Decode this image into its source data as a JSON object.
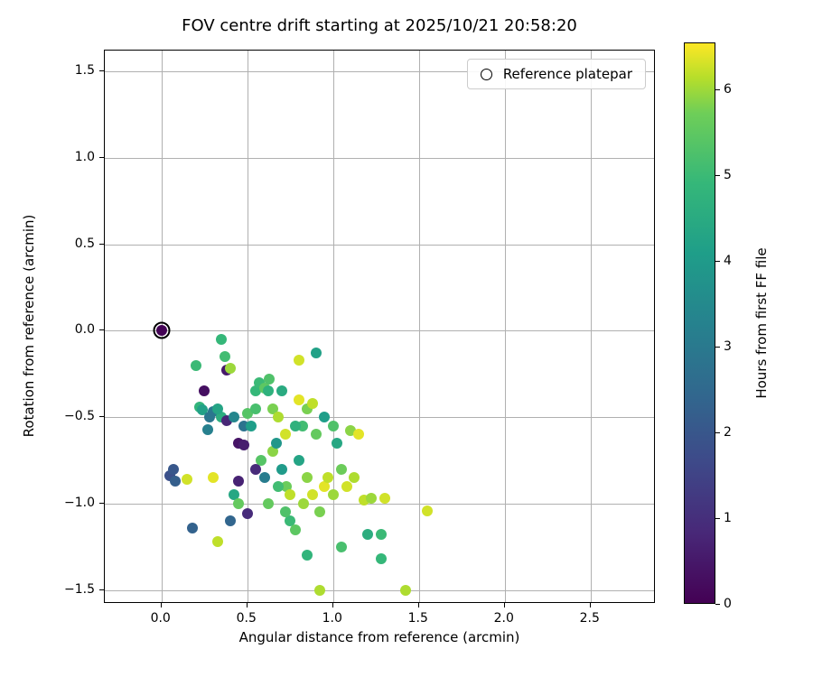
{
  "figure": {
    "title": "FOV centre drift starting at 2025/10/21 20:58:20",
    "xlabel": "Angular distance from reference (arcmin)",
    "ylabel": "Rotation from reference (arcmin)",
    "legend": {
      "label": "Reference platepar",
      "marker": "open-circle"
    },
    "colorbar": {
      "label": "Hours from first FF file"
    }
  },
  "chart_data": {
    "type": "scatter",
    "title": "FOV centre drift starting at 2025/10/21 20:58:20",
    "xlabel": "Angular distance from reference (arcmin)",
    "ylabel": "Rotation from reference (arcmin)",
    "xlim": [
      -0.33,
      2.88
    ],
    "ylim": [
      -1.58,
      1.62
    ],
    "xticks": [
      0.0,
      0.5,
      1.0,
      1.5,
      2.0,
      2.5
    ],
    "yticks": [
      -1.5,
      -1.0,
      -0.5,
      0.0,
      0.5,
      1.0,
      1.5
    ],
    "grid": true,
    "colormap": "viridis",
    "color_label": "Hours from first FF file",
    "color_range": [
      0,
      6.55
    ],
    "colorbar_ticks": [
      0,
      1,
      2,
      3,
      4,
      5,
      6
    ],
    "legend_position": "upper right",
    "reference_point": {
      "x": 0.0,
      "y": 0.0,
      "label": "Reference platepar"
    },
    "points_format": [
      "angular_distance_arcmin",
      "rotation_arcmin",
      "hours_from_first_ff"
    ],
    "points": [
      [
        0.0,
        0.0,
        0.05
      ],
      [
        0.05,
        -0.84,
        1.8
      ],
      [
        0.08,
        -0.87,
        2.2
      ],
      [
        0.07,
        -0.8,
        2.0
      ],
      [
        0.18,
        -1.14,
        2.3
      ],
      [
        0.15,
        -0.86,
        6.3
      ],
      [
        0.2,
        -0.2,
        5.0
      ],
      [
        0.22,
        -0.44,
        4.8
      ],
      [
        0.25,
        -0.35,
        0.3
      ],
      [
        0.27,
        -0.57,
        3.2
      ],
      [
        0.24,
        -0.46,
        4.2
      ],
      [
        0.3,
        -0.47,
        3.0
      ],
      [
        0.28,
        -0.5,
        2.9
      ],
      [
        0.3,
        -0.85,
        6.4
      ],
      [
        0.33,
        -1.22,
        6.2
      ],
      [
        0.35,
        -0.05,
        4.9
      ],
      [
        0.37,
        -0.15,
        5.1
      ],
      [
        0.38,
        -0.23,
        0.5
      ],
      [
        0.4,
        -0.22,
        6.0
      ],
      [
        0.35,
        -0.5,
        4.6
      ],
      [
        0.33,
        -0.45,
        4.3
      ],
      [
        0.38,
        -0.52,
        0.8
      ],
      [
        0.42,
        -0.5,
        3.4
      ],
      [
        0.45,
        -0.65,
        0.4
      ],
      [
        0.48,
        -0.66,
        0.6
      ],
      [
        0.45,
        -0.87,
        0.7
      ],
      [
        0.42,
        -0.95,
        4.4
      ],
      [
        0.45,
        -1.0,
        5.6
      ],
      [
        0.4,
        -1.1,
        2.4
      ],
      [
        0.5,
        -1.06,
        0.9
      ],
      [
        0.48,
        -0.55,
        2.8
      ],
      [
        0.52,
        -0.55,
        4.1
      ],
      [
        0.5,
        -0.48,
        5.4
      ],
      [
        0.55,
        -0.45,
        5.2
      ],
      [
        0.55,
        -0.35,
        4.9
      ],
      [
        0.57,
        -0.3,
        5.0
      ],
      [
        0.6,
        -0.33,
        5.5
      ],
      [
        0.62,
        -0.35,
        4.7
      ],
      [
        0.63,
        -0.28,
        5.3
      ],
      [
        0.65,
        -0.45,
        5.8
      ],
      [
        0.65,
        -0.7,
        5.9
      ],
      [
        0.67,
        -0.65,
        3.9
      ],
      [
        0.68,
        -0.5,
        6.1
      ],
      [
        0.7,
        -0.35,
        4.5
      ],
      [
        0.7,
        -0.8,
        4.0
      ],
      [
        0.72,
        -0.6,
        6.3
      ],
      [
        0.73,
        -0.9,
        5.7
      ],
      [
        0.75,
        -0.95,
        6.2
      ],
      [
        0.75,
        -1.1,
        5.0
      ],
      [
        0.78,
        -1.15,
        5.5
      ],
      [
        0.8,
        -0.17,
        6.3
      ],
      [
        0.8,
        -0.4,
        6.4
      ],
      [
        0.8,
        -0.75,
        4.3
      ],
      [
        0.82,
        -0.55,
        5.1
      ],
      [
        0.83,
        -1.0,
        6.0
      ],
      [
        0.85,
        -0.85,
        5.9
      ],
      [
        0.85,
        -1.3,
        4.8
      ],
      [
        0.88,
        -0.95,
        6.3
      ],
      [
        0.9,
        -0.13,
        4.2
      ],
      [
        0.9,
        -0.6,
        5.6
      ],
      [
        0.92,
        -1.05,
        5.8
      ],
      [
        0.92,
        -1.5,
        6.1
      ],
      [
        0.95,
        -0.5,
        4.1
      ],
      [
        0.95,
        -0.9,
        6.4
      ],
      [
        0.97,
        -0.85,
        6.2
      ],
      [
        1.0,
        -0.55,
        5.3
      ],
      [
        1.0,
        -0.95,
        6.0
      ],
      [
        1.02,
        -0.65,
        4.4
      ],
      [
        1.05,
        -0.8,
        5.7
      ],
      [
        1.05,
        -1.25,
        5.2
      ],
      [
        1.08,
        -0.9,
        6.3
      ],
      [
        1.1,
        -0.58,
        5.9
      ],
      [
        1.12,
        -0.85,
        6.1
      ],
      [
        1.15,
        -0.6,
        6.4
      ],
      [
        1.18,
        -0.98,
        6.2
      ],
      [
        1.2,
        -1.18,
        4.6
      ],
      [
        1.22,
        -0.97,
        6.0
      ],
      [
        1.28,
        -1.32,
        4.9
      ],
      [
        1.28,
        -1.18,
        5.0
      ],
      [
        1.3,
        -0.97,
        6.3
      ],
      [
        1.42,
        -1.5,
        6.1
      ],
      [
        1.55,
        -1.04,
        6.3
      ],
      [
        0.6,
        -0.85,
        3.1
      ],
      [
        0.58,
        -0.75,
        5.4
      ],
      [
        0.62,
        -1.0,
        5.6
      ],
      [
        0.55,
        -0.8,
        0.9
      ],
      [
        0.85,
        -0.45,
        5.8
      ],
      [
        0.88,
        -0.42,
        6.2
      ],
      [
        0.78,
        -0.55,
        4.7
      ],
      [
        0.68,
        -0.9,
        5.1
      ],
      [
        0.72,
        -1.05,
        5.3
      ]
    ]
  }
}
